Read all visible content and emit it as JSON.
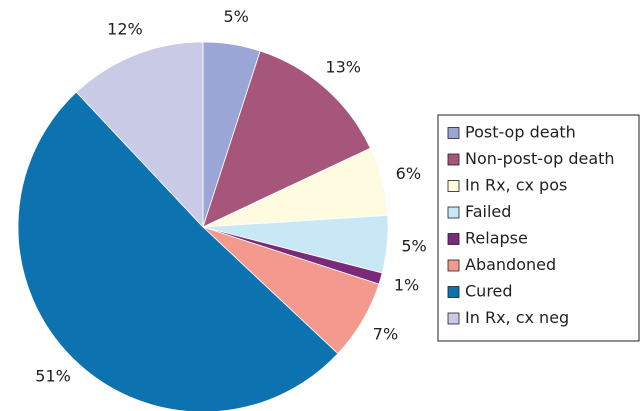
{
  "chart_data": {
    "type": "pie",
    "categories": [
      "Post-op death",
      "Non-post-op death",
      "In Rx, cx pos",
      "Failed",
      "Relapse",
      "Abandoned",
      "Cured",
      "In Rx, cx neg"
    ],
    "values": [
      5,
      13,
      6,
      5,
      1,
      7,
      51,
      12
    ],
    "value_labels": [
      "5%",
      "13%",
      "6%",
      "5%",
      "1%",
      "7%",
      "51%",
      "12%"
    ],
    "colors": [
      "#9aa6d6",
      "#a5567a",
      "#fefbe0",
      "#c8e8f6",
      "#7b2a7a",
      "#f4998e",
      "#0d72b0",
      "#c9cae6"
    ],
    "legend": "right"
  }
}
